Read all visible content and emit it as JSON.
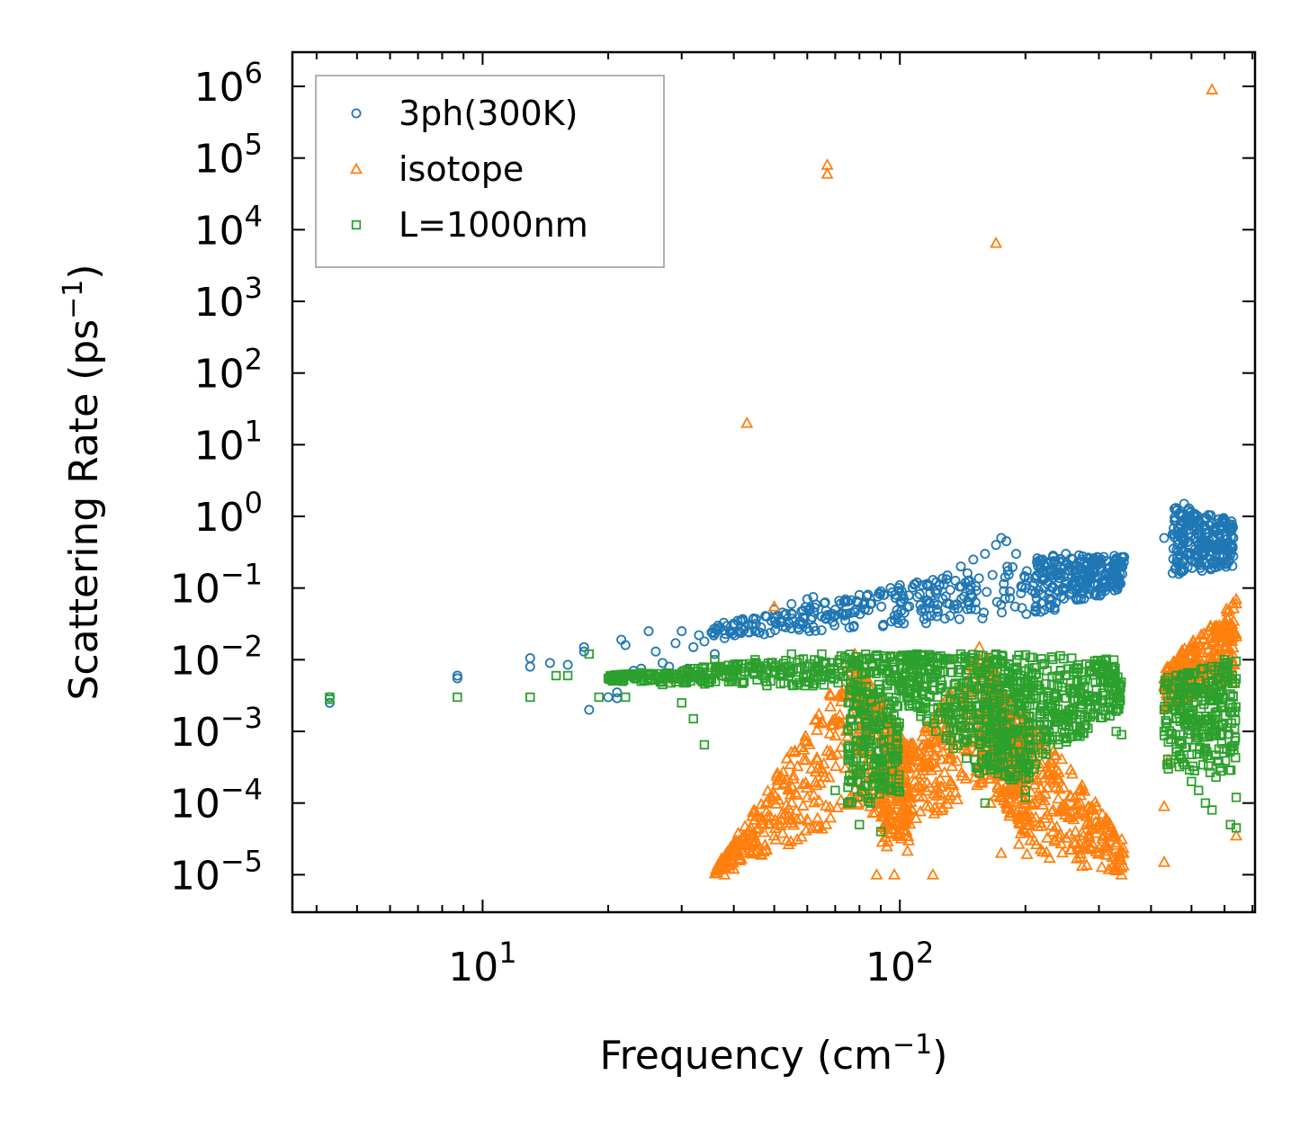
{
  "chart_data": {
    "type": "scatter",
    "xscale": "log",
    "yscale": "log",
    "xlabel": "Frequency (cm",
    "xlabel_sup": "−1",
    "xlabel_end": ")",
    "ylabel": "Scattering Rate (ps",
    "ylabel_sup": "−1",
    "ylabel_end": ")",
    "xlim": [
      3.5,
      710
    ],
    "ylim": [
      3e-06,
      3000000
    ],
    "legend_position": "top-left",
    "x_tick_labels": [
      {
        "value": 10,
        "base": "10",
        "exp": "1"
      },
      {
        "value": 100,
        "base": "10",
        "exp": "2"
      }
    ],
    "y_tick_labels": [
      {
        "value": 1e-05,
        "base": "10",
        "exp": "−5"
      },
      {
        "value": 0.0001,
        "base": "10",
        "exp": "−4"
      },
      {
        "value": 0.001,
        "base": "10",
        "exp": "−3"
      },
      {
        "value": 0.01,
        "base": "10",
        "exp": "−2"
      },
      {
        "value": 0.1,
        "base": "10",
        "exp": "−1"
      },
      {
        "value": 1,
        "base": "10",
        "exp": "0"
      },
      {
        "value": 10,
        "base": "10",
        "exp": "1"
      },
      {
        "value": 100,
        "base": "10",
        "exp": "2"
      },
      {
        "value": 1000,
        "base": "10",
        "exp": "3"
      },
      {
        "value": 10000,
        "base": "10",
        "exp": "4"
      },
      {
        "value": 100000,
        "base": "10",
        "exp": "5"
      },
      {
        "value": 1000000,
        "base": "10",
        "exp": "6"
      }
    ],
    "series": [
      {
        "name": "3ph(300K)",
        "marker": "circle",
        "color": "#1f77b4",
        "points": [
          [
            4.3,
            0.0025
          ],
          [
            4.3,
            0.003
          ],
          [
            8.7,
            0.006
          ],
          [
            8.7,
            0.0055
          ],
          [
            13,
            0.0105
          ],
          [
            13,
            0.008
          ],
          [
            14.5,
            0.009
          ],
          [
            16,
            0.0085
          ],
          [
            17.5,
            0.015
          ],
          [
            17.5,
            0.013
          ],
          [
            18,
            0.002
          ],
          [
            20,
            0.003
          ],
          [
            21,
            0.0035
          ],
          [
            21,
            0.0029
          ],
          [
            21.5,
            0.019
          ],
          [
            22,
            0.016
          ],
          [
            23,
            0.007
          ],
          [
            24,
            0.0075
          ],
          [
            25,
            0.025
          ],
          [
            26,
            0.013
          ],
          [
            27,
            0.009
          ],
          [
            28,
            0.008
          ],
          [
            29,
            0.017
          ],
          [
            30,
            0.025
          ],
          [
            31,
            0.0075
          ],
          [
            32,
            0.015
          ],
          [
            33,
            0.022
          ],
          [
            34,
            0.018
          ],
          [
            36,
            0.012
          ],
          [
            38,
            0.02
          ],
          [
            40,
            0.03
          ],
          [
            42,
            0.035
          ],
          [
            45,
            0.025
          ],
          [
            48,
            0.04
          ],
          [
            50,
            0.05
          ],
          [
            55,
            0.06
          ],
          [
            60,
            0.07
          ],
          [
            62,
            0.075
          ],
          [
            65,
            0.04
          ],
          [
            70,
            0.05
          ],
          [
            75,
            0.065
          ],
          [
            80,
            0.08
          ],
          [
            85,
            0.06
          ],
          [
            90,
            0.09
          ],
          [
            95,
            0.1
          ],
          [
            100,
            0.11
          ],
          [
            110,
            0.12
          ],
          [
            120,
            0.13
          ],
          [
            130,
            0.15
          ],
          [
            140,
            0.2
          ],
          [
            150,
            0.25
          ],
          [
            160,
            0.3
          ],
          [
            170,
            0.4
          ],
          [
            175,
            0.5
          ],
          [
            180,
            0.45
          ],
          [
            190,
            0.3
          ],
          [
            220,
            0.25
          ],
          [
            250,
            0.3
          ],
          [
            300,
            0.23
          ],
          [
            330,
            0.25
          ],
          [
            345,
            0.27
          ],
          [
            430,
            0.5
          ],
          [
            460,
            1.2
          ],
          [
            480,
            1.5
          ],
          [
            520,
            0.9
          ],
          [
            560,
            0.8
          ],
          [
            600,
            0.9
          ],
          [
            620,
            0.7
          ],
          [
            630,
            0.5
          ]
        ],
        "bands": [
          {
            "x": [
              35,
              210
            ],
            "lo": [
              0.02,
              0.04
            ],
            "hi": [
              0.03,
              0.25
            ]
          },
          {
            "x": [
              210,
              345
            ],
            "lo": [
              0.04,
              0.1
            ],
            "hi": [
              0.3,
              0.28
            ]
          },
          {
            "x": [
              450,
              630
            ],
            "lo": [
              0.15,
              0.2
            ],
            "hi": [
              1.5,
              0.9
            ]
          }
        ]
      },
      {
        "name": "isotope",
        "marker": "triangle",
        "color": "#ff7f0e",
        "points": [
          [
            43,
            20
          ],
          [
            67,
            80000
          ],
          [
            67,
            60000
          ],
          [
            170,
            6500
          ],
          [
            560,
            900000
          ],
          [
            50,
            0.055
          ],
          [
            38,
            1e-05
          ],
          [
            40,
            1.2e-05
          ],
          [
            45,
            2e-05
          ],
          [
            50,
            3.5e-05
          ],
          [
            55,
            6e-05
          ],
          [
            60,
            0.00012
          ],
          [
            65,
            0.0003
          ],
          [
            70,
            0.0015
          ],
          [
            75,
            0.008
          ],
          [
            78,
            0.012
          ],
          [
            80,
            0.0006
          ],
          [
            85,
            9e-05
          ],
          [
            88,
            1e-05
          ],
          [
            92,
            0.0001
          ],
          [
            97,
            1e-05
          ],
          [
            100,
            0.0003
          ],
          [
            105,
            3e-05
          ],
          [
            110,
            0.0004
          ],
          [
            115,
            0.001
          ],
          [
            120,
            1e-05
          ],
          [
            130,
            0.0015
          ],
          [
            140,
            0.003
          ],
          [
            150,
            0.009
          ],
          [
            155,
            0.015
          ],
          [
            160,
            0.002
          ],
          [
            165,
            0.0001
          ],
          [
            175,
            2e-05
          ],
          [
            180,
            0.003
          ],
          [
            190,
            0.0005
          ],
          [
            200,
            0.0001
          ],
          [
            210,
            3e-05
          ],
          [
            220,
            0.00025
          ],
          [
            230,
            0.0004
          ],
          [
            250,
            9e-05
          ],
          [
            280,
            5e-05
          ],
          [
            300,
            2e-05
          ],
          [
            340,
            1e-05
          ],
          [
            430,
            9e-05
          ],
          [
            430,
            1.5e-05
          ],
          [
            440,
            0.0004
          ],
          [
            480,
            0.003
          ],
          [
            520,
            0.005
          ],
          [
            560,
            0.01
          ],
          [
            600,
            0.03
          ],
          [
            640,
            0.07
          ],
          [
            640,
            3.5e-05
          ],
          [
            620,
            0.008
          ]
        ],
        "bands": [
          {
            "x": [
              36,
              78
            ],
            "lo": [
              1e-05,
              6e-05
            ],
            "hi": [
              1.2e-05,
              0.012
            ]
          },
          {
            "x": [
              78,
              105
            ],
            "lo": [
              0.0001,
              2e-05
            ],
            "hi": [
              0.012,
              0.0006
            ]
          },
          {
            "x": [
              90,
              160
            ],
            "lo": [
              2e-05,
              0.0002
            ],
            "hi": [
              0.0002,
              0.015
            ]
          },
          {
            "x": [
              160,
              200
            ],
            "lo": [
              0.0002,
              3e-05
            ],
            "hi": [
              0.015,
              0.0008
            ]
          },
          {
            "x": [
              190,
              345
            ],
            "lo": [
              2e-05,
              1e-05
            ],
            "hi": [
              0.003,
              3e-05
            ]
          },
          {
            "x": [
              430,
              640
            ],
            "lo": [
              0.002,
              0.005
            ],
            "hi": [
              0.008,
              0.07
            ]
          }
        ]
      },
      {
        "name": "L=1000nm",
        "marker": "square",
        "color": "#2ca02c",
        "points": [
          [
            4.3,
            0.003
          ],
          [
            4.3,
            0.0028
          ],
          [
            8.7,
            0.003
          ],
          [
            13,
            0.003
          ],
          [
            15,
            0.006
          ],
          [
            16,
            0.006
          ],
          [
            18,
            0.012
          ],
          [
            19,
            0.003
          ],
          [
            20,
            0.0055
          ],
          [
            22,
            0.003
          ],
          [
            24,
            0.005
          ],
          [
            25,
            0.006
          ],
          [
            27,
            0.0045
          ],
          [
            30,
            0.0025
          ],
          [
            32,
            0.0015
          ],
          [
            34,
            0.00065
          ],
          [
            36,
            0.01
          ],
          [
            40,
            0.006
          ],
          [
            45,
            0.01
          ],
          [
            50,
            0.0065
          ],
          [
            55,
            0.012
          ],
          [
            60,
            0.005
          ],
          [
            65,
            0.012
          ],
          [
            70,
            0.00015
          ],
          [
            75,
            0.0001
          ],
          [
            80,
            5e-05
          ],
          [
            82,
            0.0005
          ],
          [
            85,
            0.0001
          ],
          [
            90,
            4e-05
          ],
          [
            95,
            0.00015
          ],
          [
            100,
            0.01
          ],
          [
            110,
            0.012
          ],
          [
            120,
            0.011
          ],
          [
            130,
            0.01
          ],
          [
            140,
            0.012
          ],
          [
            160,
            0.0001
          ],
          [
            165,
            0.0003
          ],
          [
            170,
            0.012
          ],
          [
            190,
            0.001
          ],
          [
            200,
            0.00012
          ],
          [
            200,
            0.00015
          ],
          [
            210,
            0.0003
          ],
          [
            220,
            0.0005
          ],
          [
            250,
            0.006
          ],
          [
            300,
            0.008
          ],
          [
            320,
            0.002
          ],
          [
            330,
            0.001
          ],
          [
            340,
            0.0009
          ],
          [
            430,
            0.002
          ],
          [
            430,
            0.001
          ],
          [
            440,
            0.0003
          ],
          [
            460,
            0.0015
          ],
          [
            500,
            0.0002
          ],
          [
            520,
            0.00015
          ],
          [
            540,
            0.0001
          ],
          [
            560,
            8e-05
          ],
          [
            580,
            0.008
          ],
          [
            600,
            0.01
          ],
          [
            620,
            5e-05
          ],
          [
            640,
            0.00012
          ],
          [
            640,
            4.5e-05
          ]
        ],
        "bands": [
          {
            "x": [
              20,
              75
            ],
            "lo": [
              0.005,
              0.004
            ],
            "hi": [
              0.006,
              0.012
            ]
          },
          {
            "x": [
              75,
              100
            ],
            "lo": [
              0.0001,
              0.0001
            ],
            "hi": [
              0.012,
              0.012
            ]
          },
          {
            "x": [
              100,
              160
            ],
            "lo": [
              0.003,
              0.0002
            ],
            "hi": [
              0.012,
              0.012
            ]
          },
          {
            "x": [
              160,
              210
            ],
            "lo": [
              0.0002,
              0.0002
            ],
            "hi": [
              0.012,
              0.012
            ]
          },
          {
            "x": [
              210,
              340
            ],
            "lo": [
              0.0003,
              0.002
            ],
            "hi": [
              0.012,
              0.01
            ]
          },
          {
            "x": [
              430,
              640
            ],
            "lo": [
              0.0003,
              0.0002
            ],
            "hi": [
              0.006,
              0.01
            ]
          }
        ]
      }
    ]
  }
}
